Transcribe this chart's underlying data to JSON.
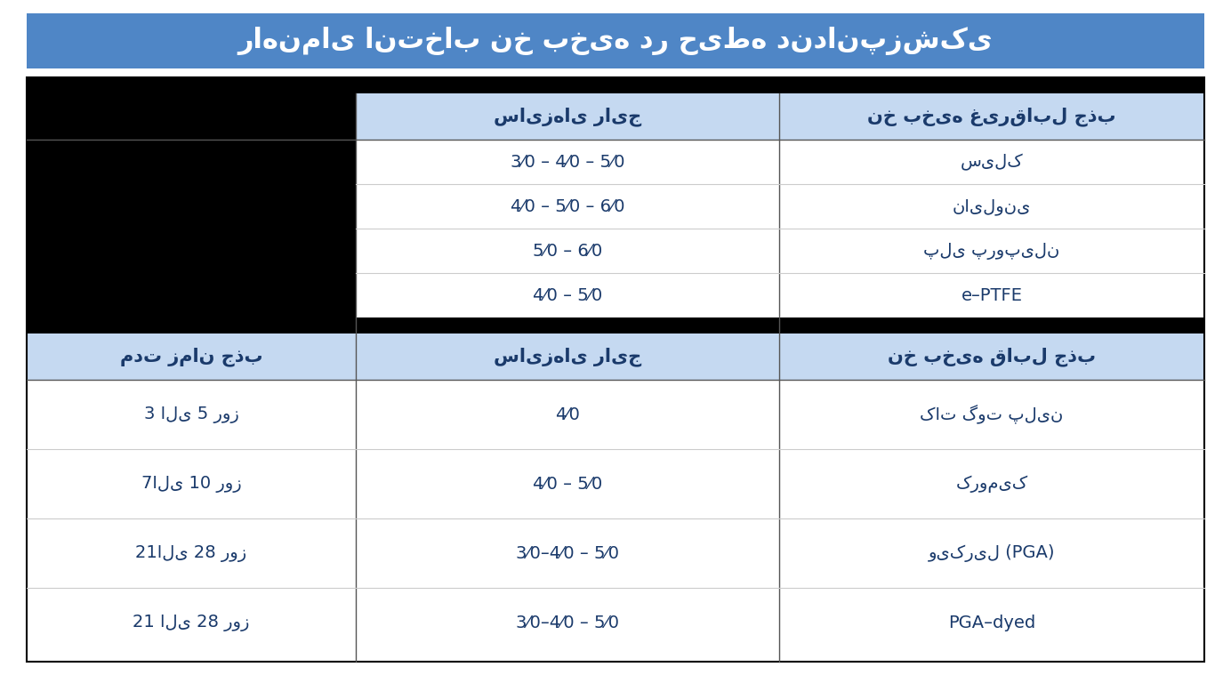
{
  "title": "راهنمای انتخاب نخ بخیه در حیطه دندانپزشکی",
  "title_bg": "#4f86c6",
  "title_color": "#ffffff",
  "header_bg": "#c5d9f1",
  "row_bg": "#ffffff",
  "dark_row_bg": "#000000",
  "black_header_bg": "#000000",
  "border_color": "#000000",
  "text_color": "#1a3a6b",
  "section1_header": [
    "نخ بخیه غیرقابل جذب",
    "سایزهای رایج",
    ""
  ],
  "section2_header": [
    "نخ بخیه قابل جذب",
    "سایزهای رایج",
    "مدت زمان جذب"
  ],
  "non_absorbable": [
    {
      "نام": "سیلک",
      "سایز": "3⁄0 – 4⁄0 – 5⁄0"
    },
    {
      "نام": "نایلونی",
      "سایز": "4⁄0 – 5⁄0 – 6⁄0"
    },
    {
      "نام": "پلی پروپیلن",
      "سایز": "5⁄0 – 6⁄0"
    },
    {
      "نام": "e–PTFE",
      "سایز": "4⁄0 – 5⁄0"
    }
  ],
  "absorbable": [
    {
      "نام": "کات گوت پلین",
      "سایز": "4⁄0",
      "مدت": "3 الی 5 روز"
    },
    {
      "نام": "کرومیک",
      "سایز": "4⁄0 – 5⁄0",
      "مدت": "7الی 10 روز"
    },
    {
      "نام": "ویکریل (PGA)",
      "سایز": "3⁄0–4⁄0 – 5⁄0",
      "مدت": "21الی 28 روز"
    },
    {
      "نام": "PGA–dyed",
      "سایز": "3⁄0–4⁄0 – 5⁄0",
      "مدت": "21 الی 28 روز"
    }
  ]
}
